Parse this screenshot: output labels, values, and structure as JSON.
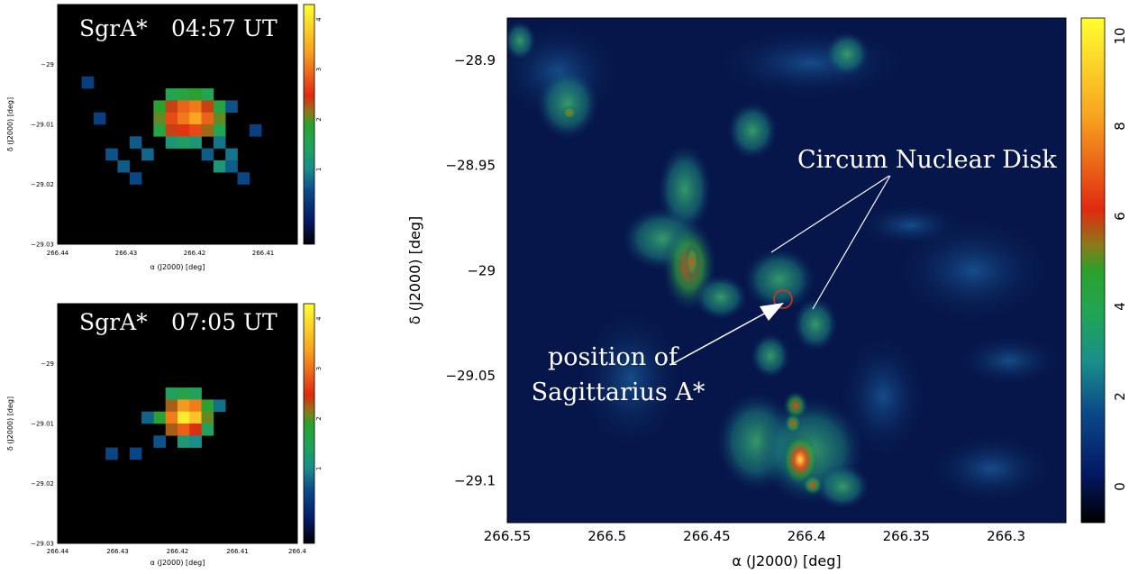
{
  "chart_data": [
    {
      "type": "heatmap",
      "title": "SgrA*",
      "time_label": "04:57 UT",
      "xlabel": "α (J2000) [deg]",
      "ylabel": "δ (J2000) [deg]",
      "xlim": [
        266.44,
        266.405
      ],
      "ylim": [
        -29.03,
        -28.99
      ],
      "x_ticks": [
        "266.44",
        "266.43",
        "266.42",
        "266.41"
      ],
      "y_ticks": [
        "−29",
        "−29.01",
        "−29.02",
        "−29.03"
      ],
      "colorbar_ticks": [
        "1",
        "2",
        "3",
        "4"
      ],
      "colorbar_range": [
        -0.5,
        4.3
      ],
      "peak_value": 3.4
    },
    {
      "type": "heatmap",
      "title": "SgrA*",
      "time_label": "07:05 UT",
      "xlabel": "α (J2000) [deg]",
      "ylabel": "δ (J2000) [deg]",
      "xlim": [
        266.44,
        266.4
      ],
      "ylim": [
        -29.03,
        -28.99
      ],
      "x_ticks": [
        "266.44",
        "266.43",
        "266.42",
        "266.41",
        "266.4"
      ],
      "y_ticks": [
        "−29",
        "−29.01",
        "−29.02",
        "−29.03"
      ],
      "colorbar_ticks": [
        "1",
        "2",
        "3",
        "4"
      ],
      "colorbar_range": [
        -0.5,
        4.3
      ],
      "peak_value": 4.1
    },
    {
      "type": "heatmap",
      "xlabel": "α (J2000) [deg]",
      "ylabel": "δ (J2000) [deg]",
      "xlim": [
        266.55,
        266.27
      ],
      "ylim": [
        -29.12,
        -28.88
      ],
      "x_ticks": [
        "266.55",
        "266.5",
        "266.45",
        "266.4",
        "266.35",
        "266.3"
      ],
      "y_ticks": [
        "−28.9",
        "−28.95",
        "−29",
        "−29.05",
        "−29.1"
      ],
      "colorbar_ticks": [
        "0",
        "2",
        "4",
        "6",
        "8",
        "10"
      ],
      "colorbar_range": [
        -0.8,
        10.4
      ],
      "annotations": [
        "Circum Nuclear Disk",
        "position of",
        "Sagittarius A*"
      ]
    }
  ]
}
